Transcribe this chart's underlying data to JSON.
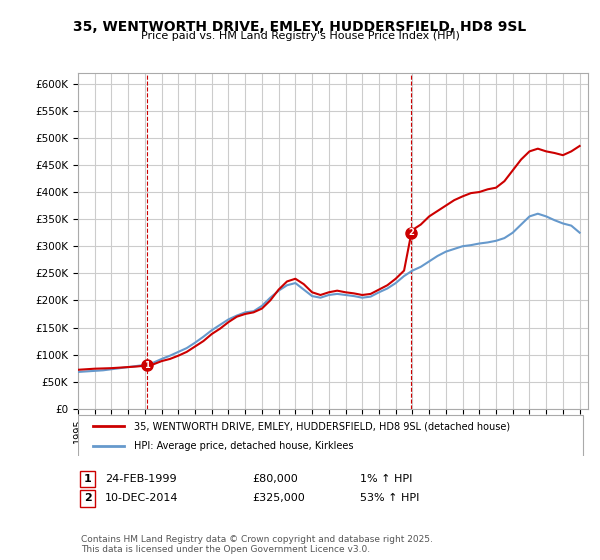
{
  "title": "35, WENTWORTH DRIVE, EMLEY, HUDDERSFIELD, HD8 9SL",
  "subtitle": "Price paid vs. HM Land Registry's House Price Index (HPI)",
  "legend_line1": "35, WENTWORTH DRIVE, EMLEY, HUDDERSFIELD, HD8 9SL (detached house)",
  "legend_line2": "HPI: Average price, detached house, Kirklees",
  "annotation1_label": "1",
  "annotation1_date": "24-FEB-1999",
  "annotation1_price": "£80,000",
  "annotation1_hpi": "1% ↑ HPI",
  "annotation2_label": "2",
  "annotation2_date": "10-DEC-2014",
  "annotation2_price": "£325,000",
  "annotation2_hpi": "53% ↑ HPI",
  "footer": "Contains HM Land Registry data © Crown copyright and database right 2025.\nThis data is licensed under the Open Government Licence v3.0.",
  "ylim": [
    0,
    620000
  ],
  "yticks": [
    0,
    50000,
    100000,
    150000,
    200000,
    250000,
    300000,
    350000,
    400000,
    450000,
    500000,
    550000,
    600000
  ],
  "red_color": "#cc0000",
  "blue_color": "#6699cc",
  "background_color": "#ffffff",
  "grid_color": "#cccccc",
  "sale1_x": 1999.13,
  "sale1_y": 80000,
  "sale2_x": 2014.94,
  "sale2_y": 325000,
  "red_x": [
    1995.0,
    1995.5,
    1996.0,
    1996.5,
    1997.0,
    1997.5,
    1998.0,
    1998.5,
    1999.13,
    1999.5,
    2000.0,
    2000.5,
    2001.0,
    2001.5,
    2002.0,
    2002.5,
    2003.0,
    2003.5,
    2004.0,
    2004.5,
    2005.0,
    2005.5,
    2006.0,
    2006.5,
    2007.0,
    2007.5,
    2008.0,
    2008.5,
    2009.0,
    2009.5,
    2010.0,
    2010.5,
    2011.0,
    2011.5,
    2012.0,
    2012.5,
    2013.0,
    2013.5,
    2014.0,
    2014.5,
    2014.94,
    2015.0,
    2015.5,
    2016.0,
    2016.5,
    2017.0,
    2017.5,
    2018.0,
    2018.5,
    2019.0,
    2019.5,
    2020.0,
    2020.5,
    2021.0,
    2021.5,
    2022.0,
    2022.5,
    2023.0,
    2023.5,
    2024.0,
    2024.5,
    2025.0
  ],
  "red_y": [
    72000,
    73000,
    74000,
    74500,
    75000,
    76000,
    77000,
    78000,
    80000,
    82000,
    88000,
    92000,
    98000,
    105000,
    115000,
    125000,
    138000,
    148000,
    160000,
    170000,
    175000,
    178000,
    185000,
    200000,
    220000,
    235000,
    240000,
    230000,
    215000,
    210000,
    215000,
    218000,
    215000,
    213000,
    210000,
    212000,
    220000,
    228000,
    240000,
    255000,
    325000,
    330000,
    340000,
    355000,
    365000,
    375000,
    385000,
    392000,
    398000,
    400000,
    405000,
    408000,
    420000,
    440000,
    460000,
    475000,
    480000,
    475000,
    472000,
    468000,
    475000,
    485000
  ],
  "blue_x": [
    1995.0,
    1995.5,
    1996.0,
    1996.5,
    1997.0,
    1997.5,
    1998.0,
    1998.5,
    1999.0,
    1999.5,
    2000.0,
    2000.5,
    2001.0,
    2001.5,
    2002.0,
    2002.5,
    2003.0,
    2003.5,
    2004.0,
    2004.5,
    2005.0,
    2005.5,
    2006.0,
    2006.5,
    2007.0,
    2007.5,
    2008.0,
    2008.5,
    2009.0,
    2009.5,
    2010.0,
    2010.5,
    2011.0,
    2011.5,
    2012.0,
    2012.5,
    2013.0,
    2013.5,
    2014.0,
    2014.5,
    2015.0,
    2015.5,
    2016.0,
    2016.5,
    2017.0,
    2017.5,
    2018.0,
    2018.5,
    2019.0,
    2019.5,
    2020.0,
    2020.5,
    2021.0,
    2021.5,
    2022.0,
    2022.5,
    2023.0,
    2023.5,
    2024.0,
    2024.5,
    2025.0
  ],
  "blue_y": [
    68000,
    69000,
    70000,
    71000,
    73000,
    75000,
    77000,
    79000,
    81000,
    85000,
    92000,
    98000,
    105000,
    112000,
    122000,
    133000,
    145000,
    155000,
    165000,
    172000,
    178000,
    180000,
    190000,
    205000,
    218000,
    228000,
    232000,
    220000,
    208000,
    205000,
    210000,
    212000,
    210000,
    208000,
    205000,
    207000,
    215000,
    222000,
    232000,
    245000,
    255000,
    262000,
    272000,
    282000,
    290000,
    295000,
    300000,
    302000,
    305000,
    307000,
    310000,
    315000,
    325000,
    340000,
    355000,
    360000,
    355000,
    348000,
    342000,
    338000,
    325000
  ],
  "xmin": 1995.0,
  "xmax": 2025.5
}
